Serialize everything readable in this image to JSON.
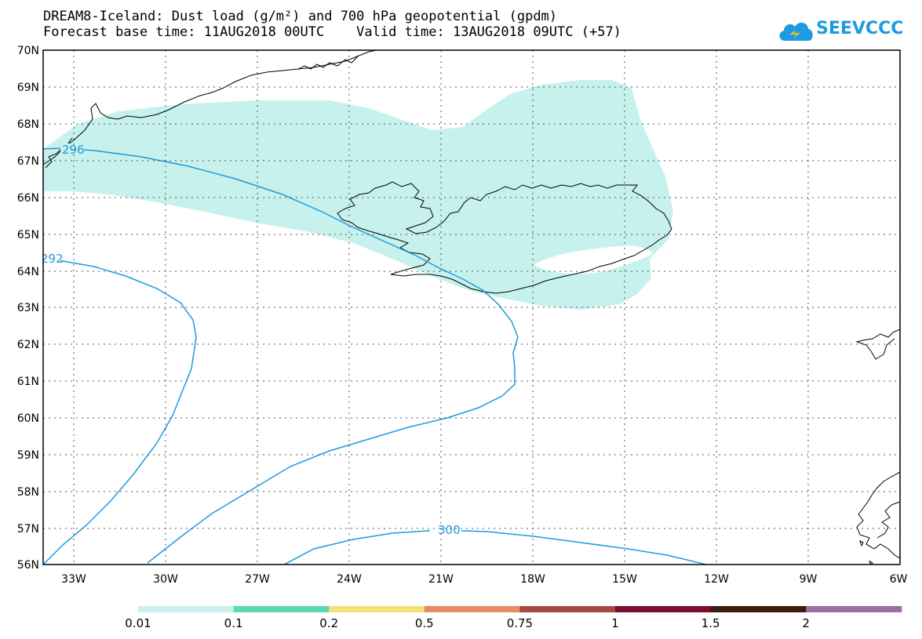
{
  "header": {
    "title_line1": "DREAM8-Iceland: Dust load (g/m²) and 700 hPa geopotential (gpdm)",
    "title_line2": "Forecast base time: 11AUG2018 00UTC    Valid time: 13AUG2018 09UTC (+57)"
  },
  "logo": {
    "text": "SEEVCCC",
    "icon": "cloud-icon",
    "color": "#1e9ae0"
  },
  "map": {
    "lat_labels": [
      "70N",
      "69N",
      "68N",
      "67N",
      "66N",
      "65N",
      "64N",
      "63N",
      "62N",
      "61N",
      "60N",
      "59N",
      "58N",
      "57N",
      "56N"
    ],
    "lon_labels": [
      "33W",
      "30W",
      "27W",
      "24W",
      "21W",
      "18W",
      "15W",
      "12W",
      "9W",
      "6W"
    ],
    "contour_color": "#1e9ae0",
    "contour_labels": [
      "296",
      "292",
      "300"
    ],
    "dust_fill_color": "#c6f1ec"
  },
  "colorbar": {
    "labels": [
      "0.01",
      "0.1",
      "0.2",
      "0.5",
      "0.75",
      "1",
      "1.5",
      "2"
    ],
    "colors": [
      "#c6f1ec",
      "#5ad9b3",
      "#f3e277",
      "#e68b66",
      "#a24a3f",
      "#7d0d2e",
      "#3a1d0d",
      "#9671a2"
    ]
  }
}
